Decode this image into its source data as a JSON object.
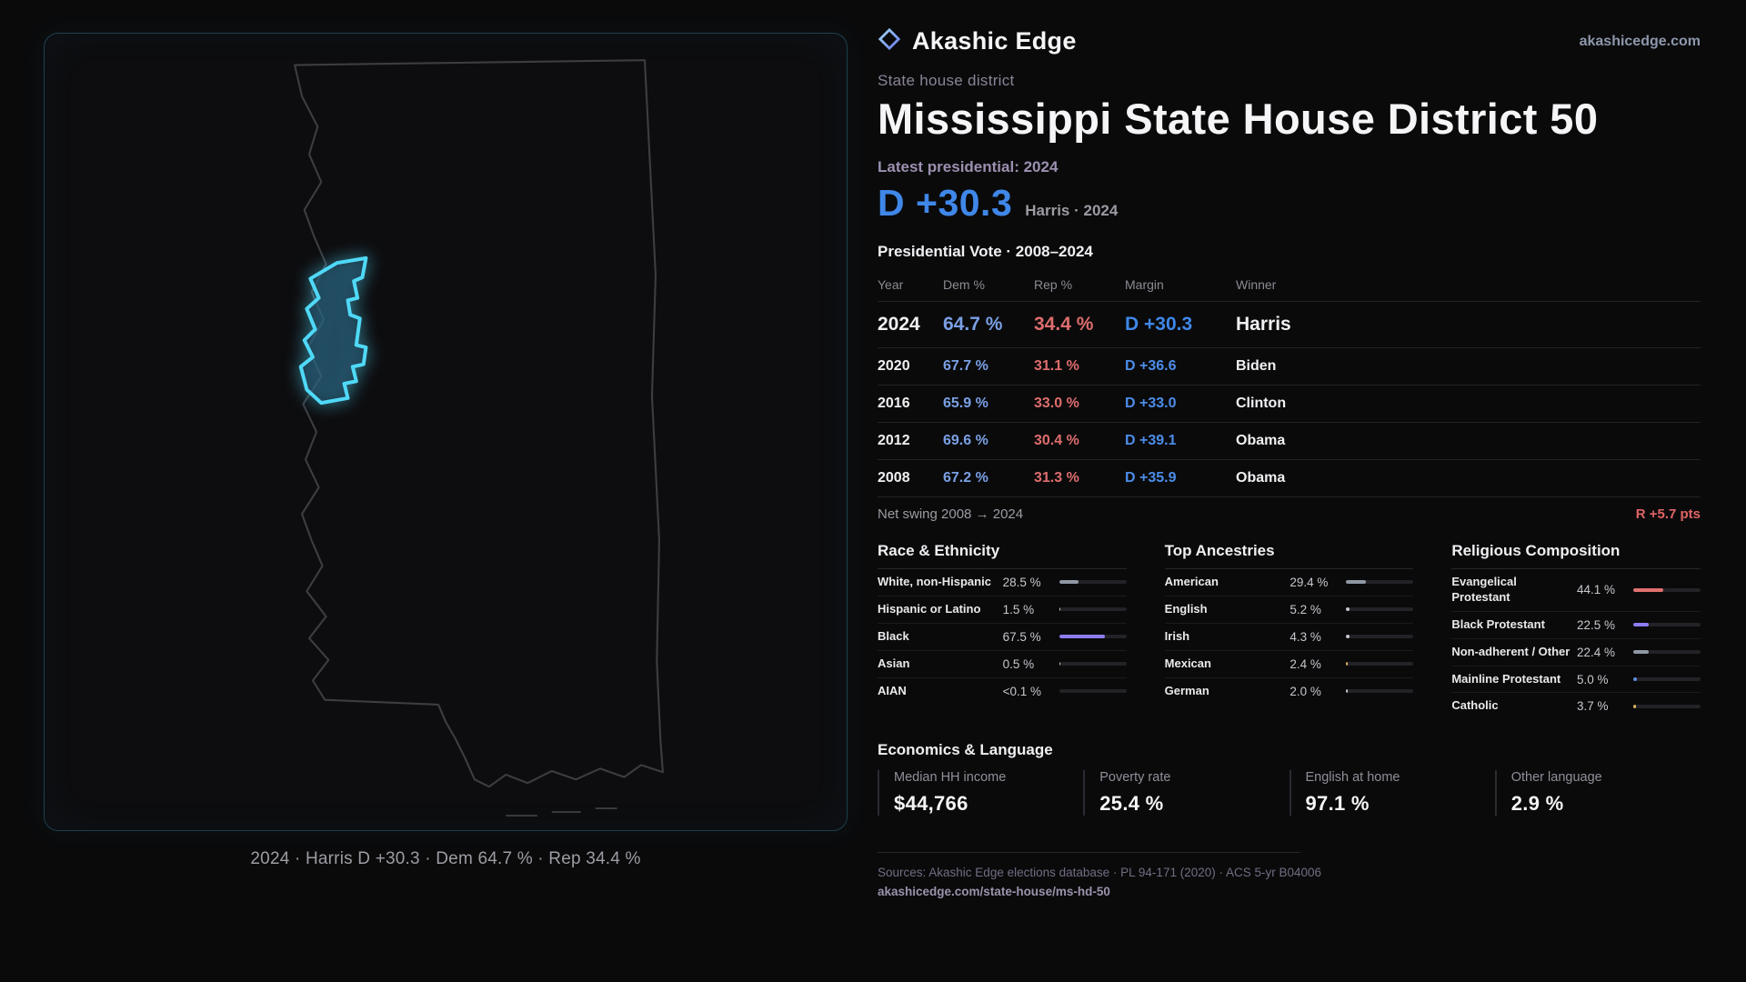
{
  "header": {
    "brand": "Akashic Edge",
    "site": "akashicedge.com"
  },
  "overview": {
    "kicker": "State house district",
    "title": "Mississippi State House District 50",
    "latest_label": "Latest presidential: 2024",
    "margin_value": "D +30.3",
    "margin_detail": "Harris · 2024"
  },
  "map_caption": "2024 · Harris D +30.3 · Dem 64.7 % · Rep 34.4 %",
  "vote_table": {
    "title": "Presidential Vote · 2008–2024",
    "columns": [
      "Year",
      "Dem %",
      "Rep %",
      "Margin",
      "Winner"
    ],
    "rows": [
      {
        "year": "2024",
        "dem": "64.7 %",
        "rep": "34.4 %",
        "margin": "D +30.3",
        "winner": "Harris"
      },
      {
        "year": "2020",
        "dem": "67.7 %",
        "rep": "31.1 %",
        "margin": "D +36.6",
        "winner": "Biden"
      },
      {
        "year": "2016",
        "dem": "65.9 %",
        "rep": "33.0 %",
        "margin": "D +33.0",
        "winner": "Clinton"
      },
      {
        "year": "2012",
        "dem": "69.6 %",
        "rep": "30.4 %",
        "margin": "D +39.1",
        "winner": "Obama"
      },
      {
        "year": "2008",
        "dem": "67.2 %",
        "rep": "31.3 %",
        "margin": "D +35.9",
        "winner": "Obama"
      }
    ],
    "swing_label": "Net swing 2008 → 2024",
    "swing_value": "R +5.7 pts"
  },
  "demographics": {
    "race": {
      "title": "Race & Ethnicity",
      "rows": [
        {
          "label": "White, non-Hispanic",
          "value": "28.5 %",
          "pct": 28.5,
          "color": "#8f98a4"
        },
        {
          "label": "Hispanic or Latino",
          "value": "1.5 %",
          "pct": 1.5,
          "color": "#c8c8ce"
        },
        {
          "label": "Black",
          "value": "67.5 %",
          "pct": 67.5,
          "color": "#8d7df2"
        },
        {
          "label": "Asian",
          "value": "0.5 %",
          "pct": 0.5,
          "color": "#c8c8ce"
        },
        {
          "label": "AIAN",
          "value": "<0.1 %",
          "pct": 0.05,
          "color": "#c8c8ce"
        }
      ]
    },
    "ancestries": {
      "title": "Top Ancestries",
      "rows": [
        {
          "label": "American",
          "value": "29.4 %",
          "pct": 29.4,
          "color": "#8f98a4"
        },
        {
          "label": "English",
          "value": "5.2 %",
          "pct": 5.2,
          "color": "#c8c8ce"
        },
        {
          "label": "Irish",
          "value": "4.3 %",
          "pct": 4.3,
          "color": "#c8c8ce"
        },
        {
          "label": "Mexican",
          "value": "2.4 %",
          "pct": 2.4,
          "color": "#e0b45c"
        },
        {
          "label": "German",
          "value": "2.0 %",
          "pct": 2.0,
          "color": "#c8c8ce"
        }
      ]
    },
    "religion": {
      "title": "Religious Composition",
      "rows": [
        {
          "label": "Evangelical Protestant",
          "value": "44.1 %",
          "pct": 44.1,
          "color": "#e0716e"
        },
        {
          "label": "Black Protestant",
          "value": "22.5 %",
          "pct": 22.5,
          "color": "#8d7df2"
        },
        {
          "label": "Non-adherent / Other",
          "value": "22.4 %",
          "pct": 22.4,
          "color": "#8f98a4"
        },
        {
          "label": "Mainline Protestant",
          "value": "5.0 %",
          "pct": 5.0,
          "color": "#5f8fe0"
        },
        {
          "label": "Catholic",
          "value": "3.7 %",
          "pct": 3.7,
          "color": "#e0b45c"
        }
      ]
    }
  },
  "economics": {
    "title": "Economics & Language",
    "stats": [
      {
        "label": "Median HH income",
        "value": "$44,766"
      },
      {
        "label": "Poverty rate",
        "value": "25.4 %"
      },
      {
        "label": "English at home",
        "value": "97.1 %"
      },
      {
        "label": "Other language",
        "value": "2.9 %"
      }
    ]
  },
  "footer": {
    "sources": "Sources: Akashic Edge elections database · PL 94-171 (2020) · ACS 5-yr B04006",
    "permalink": "akashicedge.com/state-house/ms-hd-50"
  },
  "chart_data": [
    {
      "type": "table",
      "title": "Presidential Vote · 2008–2024",
      "columns": [
        "Year",
        "Dem %",
        "Rep %",
        "Margin",
        "Winner"
      ],
      "rows": [
        [
          2024,
          64.7,
          34.4,
          "D +30.3",
          "Harris"
        ],
        [
          2020,
          67.7,
          31.1,
          "D +36.6",
          "Biden"
        ],
        [
          2016,
          65.9,
          33.0,
          "D +33.0",
          "Clinton"
        ],
        [
          2012,
          69.6,
          30.4,
          "D +39.1",
          "Obama"
        ],
        [
          2008,
          67.2,
          31.3,
          "D +35.9",
          "Obama"
        ]
      ],
      "footnote": {
        "label": "Net swing 2008 → 2024",
        "value": "R +5.7 pts"
      }
    },
    {
      "type": "bar",
      "orientation": "horizontal",
      "title": "Race & Ethnicity",
      "categories": [
        "White, non-Hispanic",
        "Hispanic or Latino",
        "Black",
        "Asian",
        "AIAN"
      ],
      "values": [
        28.5,
        1.5,
        67.5,
        0.5,
        0.05
      ],
      "unit": "%",
      "xlim": [
        0,
        100
      ]
    },
    {
      "type": "bar",
      "orientation": "horizontal",
      "title": "Top Ancestries",
      "categories": [
        "American",
        "English",
        "Irish",
        "Mexican",
        "German"
      ],
      "values": [
        29.4,
        5.2,
        4.3,
        2.4,
        2.0
      ],
      "unit": "%",
      "xlim": [
        0,
        100
      ]
    },
    {
      "type": "bar",
      "orientation": "horizontal",
      "title": "Religious Composition",
      "categories": [
        "Evangelical Protestant",
        "Black Protestant",
        "Non-adherent / Other",
        "Mainline Protestant",
        "Catholic"
      ],
      "values": [
        44.1,
        22.5,
        22.4,
        5.0,
        3.7
      ],
      "unit": "%",
      "xlim": [
        0,
        100
      ]
    },
    {
      "type": "table",
      "title": "Economics & Language",
      "columns": [
        "Median HH income",
        "Poverty rate",
        "English at home",
        "Other language"
      ],
      "rows": [
        [
          "$44,766",
          "25.4 %",
          "97.1 %",
          "2.9 %"
        ]
      ]
    }
  ]
}
